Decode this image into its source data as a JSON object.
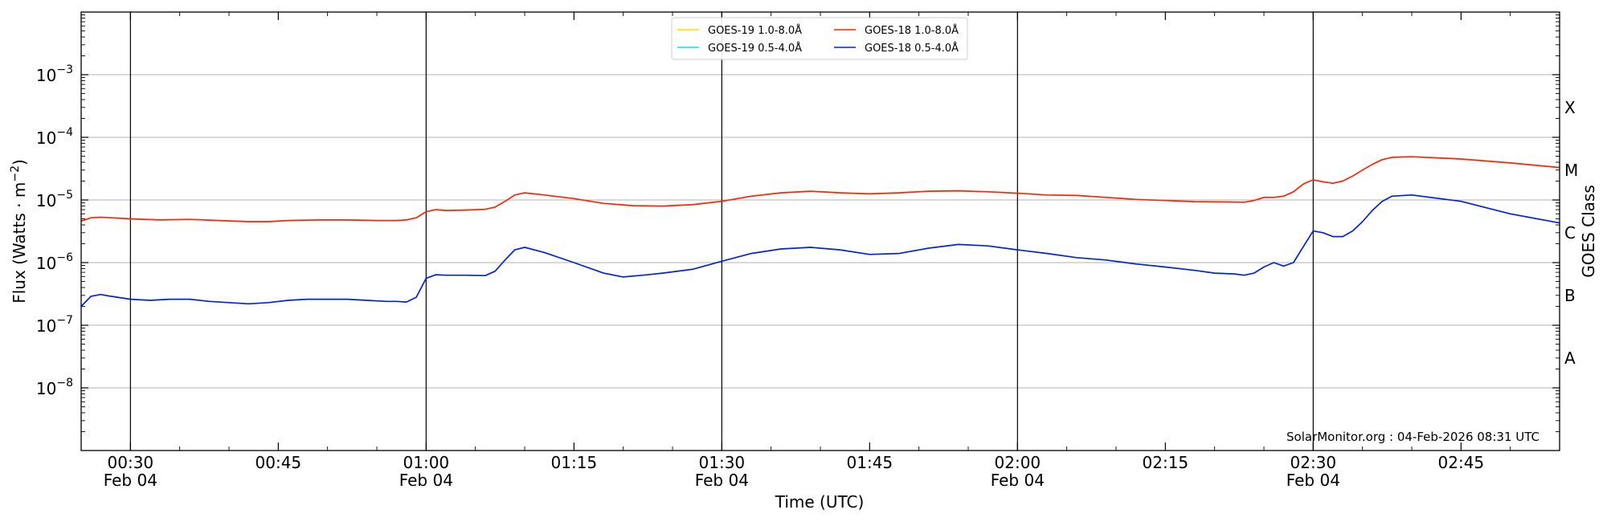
{
  "chart_data": {
    "type": "line",
    "title": "",
    "xlabel": "Time (UTC)",
    "ylabel": "Flux (Watts · m⁻²)",
    "ylabel_right": "GOES Class",
    "y_scale": "log",
    "ylim": [
      1e-09,
      0.01
    ],
    "xlim": [
      "2026-02-04 00:25",
      "2026-02-04 02:55"
    ],
    "grid": "horizontal",
    "legend_position": "top-center",
    "y_ticks": [
      {
        "value": 1e-08,
        "base": "10",
        "exp": "−8"
      },
      {
        "value": 1e-07,
        "base": "10",
        "exp": "−7"
      },
      {
        "value": 1e-06,
        "base": "10",
        "exp": "−6"
      },
      {
        "value": 1e-05,
        "base": "10",
        "exp": "−5"
      },
      {
        "value": 0.0001,
        "base": "10",
        "exp": "−4"
      },
      {
        "value": 0.001,
        "base": "10",
        "exp": "−3"
      }
    ],
    "x_ticks": [
      {
        "time": "00:30",
        "label": "00:30",
        "date": "Feb 04"
      },
      {
        "time": "00:45",
        "label": "00:45",
        "date": ""
      },
      {
        "time": "01:00",
        "label": "01:00",
        "date": "Feb 04"
      },
      {
        "time": "01:15",
        "label": "01:15",
        "date": ""
      },
      {
        "time": "01:30",
        "label": "01:30",
        "date": "Feb 04"
      },
      {
        "time": "01:45",
        "label": "01:45",
        "date": ""
      },
      {
        "time": "02:00",
        "label": "02:00",
        "date": "Feb 04"
      },
      {
        "time": "02:15",
        "label": "02:15",
        "date": ""
      },
      {
        "time": "02:30",
        "label": "02:30",
        "date": "Feb 04"
      },
      {
        "time": "02:45",
        "label": "02:45",
        "date": ""
      }
    ],
    "vertical_lines": [
      "00:30",
      "01:00",
      "01:30",
      "02:00",
      "02:30"
    ],
    "goes_classes": [
      {
        "label": "A",
        "value": 3e-08
      },
      {
        "label": "B",
        "value": 3e-07
      },
      {
        "label": "C",
        "value": 3e-06
      },
      {
        "label": "M",
        "value": 3e-05
      },
      {
        "label": "X",
        "value": 0.0003
      }
    ],
    "legend": [
      {
        "name": "GOES-19 1.0-8.0Å",
        "color": "#ffd700"
      },
      {
        "name": "GOES-19 0.5-4.0Å",
        "color": "#00e5ee"
      },
      {
        "name": "GOES-18 1.0-8.0Å",
        "color": "#ff2200"
      },
      {
        "name": "GOES-18 0.5-4.0Å",
        "color": "#0022dd"
      }
    ],
    "series": [
      {
        "name": "GOES-18 1.0-8.0Å",
        "color": "#ff2200",
        "x": [
          "00:25",
          "00:26",
          "00:27",
          "00:28",
          "00:30",
          "00:33",
          "00:36",
          "00:39",
          "00:42",
          "00:44",
          "00:46",
          "00:49",
          "00:52",
          "00:55",
          "00:57",
          "00:58",
          "00:59",
          "01:00",
          "01:01",
          "01:02",
          "01:04",
          "01:06",
          "01:07",
          "01:08",
          "01:09",
          "01:10",
          "01:12",
          "01:15",
          "01:18",
          "01:21",
          "01:24",
          "01:27",
          "01:30",
          "01:33",
          "01:36",
          "01:39",
          "01:42",
          "01:45",
          "01:48",
          "01:51",
          "01:54",
          "01:57",
          "02:00",
          "02:03",
          "02:06",
          "02:09",
          "02:12",
          "02:15",
          "02:18",
          "02:21",
          "02:23",
          "02:24",
          "02:25",
          "02:26",
          "02:27",
          "02:28",
          "02:29",
          "02:30",
          "02:31",
          "02:32",
          "02:33",
          "02:34",
          "02:35",
          "02:36",
          "02:37",
          "02:38",
          "02:40",
          "02:45",
          "02:50",
          "02:55"
        ],
        "y": [
          4.6e-06,
          5.2e-06,
          5.3e-06,
          5.2e-06,
          5e-06,
          4.8e-06,
          4.9e-06,
          4.7e-06,
          4.5e-06,
          4.5e-06,
          4.7e-06,
          4.8e-06,
          4.8e-06,
          4.7e-06,
          4.7e-06,
          4.8e-06,
          5.2e-06,
          6.5e-06,
          7e-06,
          6.8e-06,
          6.9e-06,
          7.1e-06,
          7.7e-06,
          9.5e-06,
          1.2e-05,
          1.3e-05,
          1.2e-05,
          1.05e-05,
          8.8e-06,
          8.1e-06,
          8e-06,
          8.4e-06,
          9.5e-06,
          1.15e-05,
          1.3e-05,
          1.38e-05,
          1.3e-05,
          1.25e-05,
          1.3e-05,
          1.38e-05,
          1.4e-05,
          1.35e-05,
          1.28e-05,
          1.2e-05,
          1.18e-05,
          1.1e-05,
          1.02e-05,
          9.8e-06,
          9.4e-06,
          9.3e-06,
          9.2e-06,
          9.8e-06,
          1.1e-05,
          1.1e-05,
          1.15e-05,
          1.35e-05,
          1.8e-05,
          2.1e-05,
          1.95e-05,
          1.85e-05,
          2e-05,
          2.4e-05,
          3e-05,
          3.7e-05,
          4.4e-05,
          4.8e-05,
          4.9e-05,
          4.5e-05,
          3.9e-05,
          3.3e-05
        ]
      },
      {
        "name": "GOES-18 0.5-4.0Å",
        "color": "#0022dd",
        "x": [
          "00:25",
          "00:26",
          "00:27",
          "00:28",
          "00:30",
          "00:32",
          "00:34",
          "00:36",
          "00:38",
          "00:40",
          "00:42",
          "00:44",
          "00:46",
          "00:48",
          "00:50",
          "00:52",
          "00:54",
          "00:56",
          "00:57",
          "00:58",
          "00:59",
          "01:00",
          "01:01",
          "01:02",
          "01:04",
          "01:06",
          "01:07",
          "01:08",
          "01:09",
          "01:10",
          "01:12",
          "01:15",
          "01:18",
          "01:20",
          "01:22",
          "01:24",
          "01:27",
          "01:30",
          "01:33",
          "01:36",
          "01:39",
          "01:42",
          "01:45",
          "01:48",
          "01:51",
          "01:54",
          "01:57",
          "02:00",
          "02:03",
          "02:06",
          "02:09",
          "02:12",
          "02:15",
          "02:18",
          "02:20",
          "02:22",
          "02:23",
          "02:24",
          "02:25",
          "02:26",
          "02:27",
          "02:28",
          "02:29",
          "02:30",
          "02:31",
          "02:32",
          "02:33",
          "02:34",
          "02:35",
          "02:36",
          "02:37",
          "02:38",
          "02:40",
          "02:45",
          "02:50",
          "02:55"
        ],
        "y": [
          2e-07,
          2.9e-07,
          3.1e-07,
          2.9e-07,
          2.6e-07,
          2.5e-07,
          2.6e-07,
          2.6e-07,
          2.4e-07,
          2.3e-07,
          2.2e-07,
          2.3e-07,
          2.5e-07,
          2.6e-07,
          2.6e-07,
          2.6e-07,
          2.5e-07,
          2.4e-07,
          2.4e-07,
          2.35e-07,
          2.8e-07,
          5.6e-07,
          6.4e-07,
          6.3e-07,
          6.3e-07,
          6.2e-07,
          7.3e-07,
          1.1e-06,
          1.6e-06,
          1.75e-06,
          1.45e-06,
          1e-06,
          6.8e-07,
          5.9e-07,
          6.3e-07,
          6.8e-07,
          7.8e-07,
          1.05e-06,
          1.4e-06,
          1.65e-06,
          1.75e-06,
          1.6e-06,
          1.35e-06,
          1.4e-06,
          1.7e-06,
          1.95e-06,
          1.85e-06,
          1.6e-06,
          1.4e-06,
          1.2e-06,
          1.1e-06,
          9.5e-07,
          8.5e-07,
          7.5e-07,
          6.8e-07,
          6.6e-07,
          6.3e-07,
          6.8e-07,
          8.5e-07,
          1e-06,
          8.8e-07,
          1e-06,
          1.8e-06,
          3.2e-06,
          3e-06,
          2.6e-06,
          2.6e-06,
          3.2e-06,
          4.5e-06,
          6.8e-06,
          9.5e-06,
          1.15e-05,
          1.2e-05,
          9.5e-06,
          6e-06,
          4.3e-06
        ]
      }
    ],
    "annotation": "SolarMonitor.org : 04-Feb-2026 08:31 UTC"
  }
}
